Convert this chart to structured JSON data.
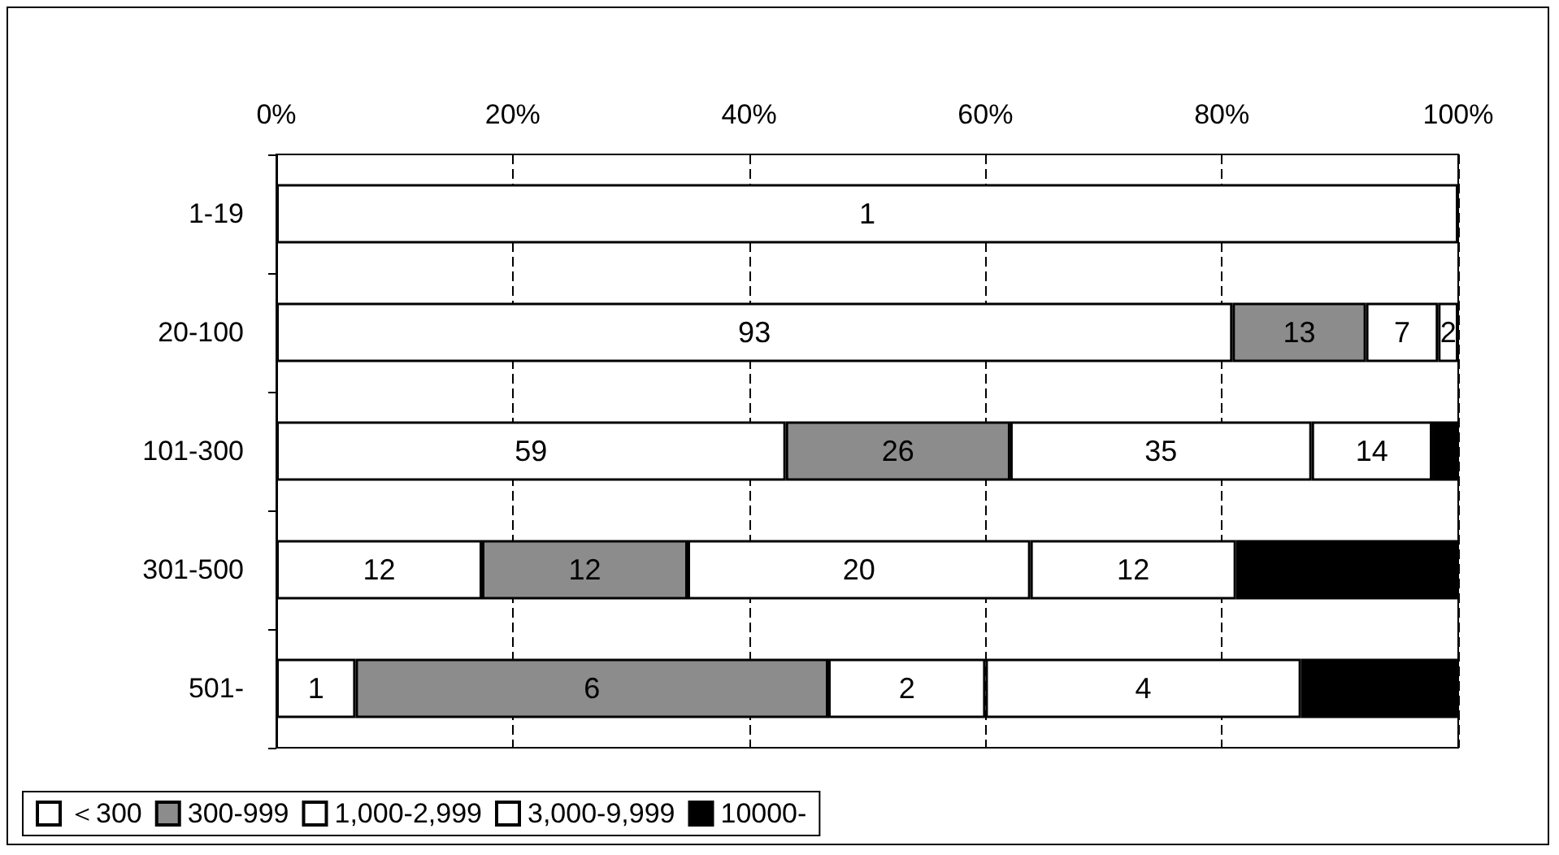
{
  "chart_data": {
    "type": "bar",
    "orientation": "horizontal",
    "stacked": true,
    "categories": [
      "1-19",
      "20-100",
      "101-300",
      "301-500",
      "501-"
    ],
    "xlim": [
      0,
      100
    ],
    "xticks": [
      {
        "value": 0,
        "label": "0%"
      },
      {
        "value": 20,
        "label": "20%"
      },
      {
        "value": 40,
        "label": "40%"
      },
      {
        "value": 60,
        "label": "60%"
      },
      {
        "value": 80,
        "label": "80%"
      },
      {
        "value": 100,
        "label": "100%"
      }
    ],
    "grid": "x",
    "legend": "bottom",
    "series": [
      {
        "name": "＜300",
        "color": "#ffffff",
        "values": [
          100,
          80.9,
          43.1,
          17.4,
          6.7
        ]
      },
      {
        "name": "300-999",
        "color": "#8c8c8c",
        "values": [
          null,
          11.3,
          19.0,
          17.4,
          40.0
        ]
      },
      {
        "name": "1,000-2,999",
        "color": "#ffffff",
        "values": [
          null,
          6.1,
          25.5,
          29.0,
          13.3
        ]
      },
      {
        "name": "3,000-9,999",
        "color": "#ffffff",
        "values": [
          null,
          1.7,
          10.2,
          17.4,
          26.7
        ]
      },
      {
        "name": "10000-",
        "color": "#000000",
        "values": [
          null,
          null,
          2.2,
          18.8,
          13.3
        ]
      }
    ],
    "annotations": [
      "1",
      "93",
      "13",
      "7",
      "2",
      "59",
      "26",
      "35",
      "14",
      "12",
      "12",
      "20",
      "12",
      "1",
      "6",
      "2",
      "4"
    ]
  }
}
